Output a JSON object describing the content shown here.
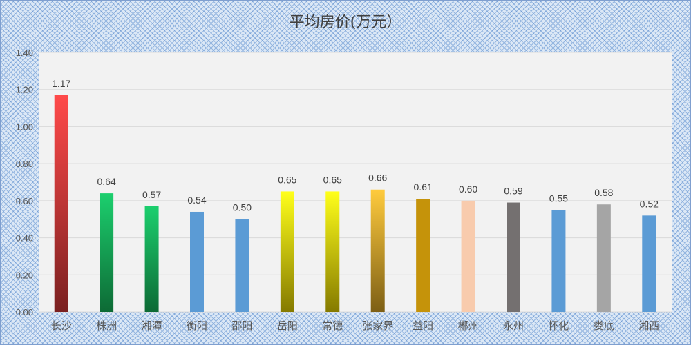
{
  "chart_data": {
    "type": "bar",
    "title": "平均房价(万元）",
    "categories": [
      "长沙",
      "株洲",
      "湘潭",
      "衡阳",
      "邵阳",
      "岳阳",
      "常德",
      "张家界",
      "益阳",
      "郴州",
      "永州",
      "怀化",
      "娄底",
      "湘西"
    ],
    "values": [
      1.17,
      0.64,
      0.57,
      0.54,
      0.5,
      0.65,
      0.65,
      0.66,
      0.61,
      0.6,
      0.59,
      0.55,
      0.58,
      0.52
    ],
    "data_labels": [
      "1.17",
      "0.64",
      "0.57",
      "0.54",
      "0.50",
      "0.65",
      "0.65",
      "0.66",
      "0.61",
      "0.60",
      "0.59",
      "0.55",
      "0.58",
      "0.52"
    ],
    "ylim": [
      0,
      1.4
    ],
    "yticks": [
      "0.00",
      "0.20",
      "0.40",
      "0.60",
      "0.80",
      "1.00",
      "1.20",
      "1.40"
    ],
    "xlabel": "",
    "ylabel": "",
    "grid": true,
    "legend": "none",
    "colors": [
      [
        "#ff4a4a",
        "#7a2020"
      ],
      [
        "#1ccf6e",
        "#0d6a35"
      ],
      [
        "#1ccf6e",
        "#0d6a35"
      ],
      [
        "#5b9bd5",
        "#5b9bd5"
      ],
      [
        "#5b9bd5",
        "#5b9bd5"
      ],
      [
        "#ffff1a",
        "#857a00"
      ],
      [
        "#ffff1a",
        "#857a00"
      ],
      [
        "#ffcb3d",
        "#7d5f15"
      ],
      [
        "#c5930a",
        "#c5930a"
      ],
      [
        "#f8cbad",
        "#f8cbad"
      ],
      [
        "#747070",
        "#747070"
      ],
      [
        "#5b9bd5",
        "#5b9bd5"
      ],
      [
        "#a5a5a5",
        "#a5a5a5"
      ],
      [
        "#5b9bd5",
        "#5b9bd5"
      ]
    ]
  }
}
